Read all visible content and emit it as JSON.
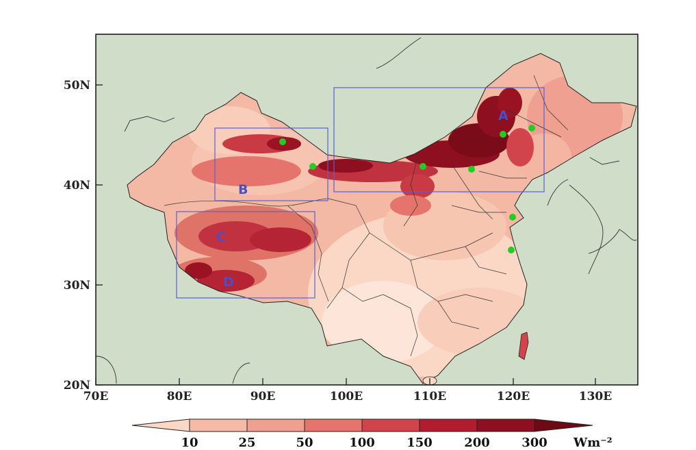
{
  "map": {
    "axes": {
      "x_ticks": [
        "70E",
        "80E",
        "90E",
        "100E",
        "110E",
        "120E",
        "130E"
      ],
      "y_ticks": [
        "20N",
        "30N",
        "40N",
        "50N"
      ]
    },
    "region_boxes": [
      {
        "label": "A"
      },
      {
        "label": "B"
      },
      {
        "label": "C"
      },
      {
        "label": "D"
      }
    ],
    "colors": {
      "ocean_land_background": "#cfddc9",
      "box_outline": "#5b5fd6",
      "station_marker": "#22cc22",
      "levels": [
        "#fbd7c5",
        "#f6bba7",
        "#f0a08f",
        "#e5756c",
        "#d2444c",
        "#b31b2e",
        "#8e0f1f",
        "#6d0a16"
      ]
    },
    "colorbar": {
      "labels": [
        "10",
        "25",
        "50",
        "100",
        "150",
        "200",
        "300"
      ],
      "unit": "Wm⁻²"
    }
  }
}
